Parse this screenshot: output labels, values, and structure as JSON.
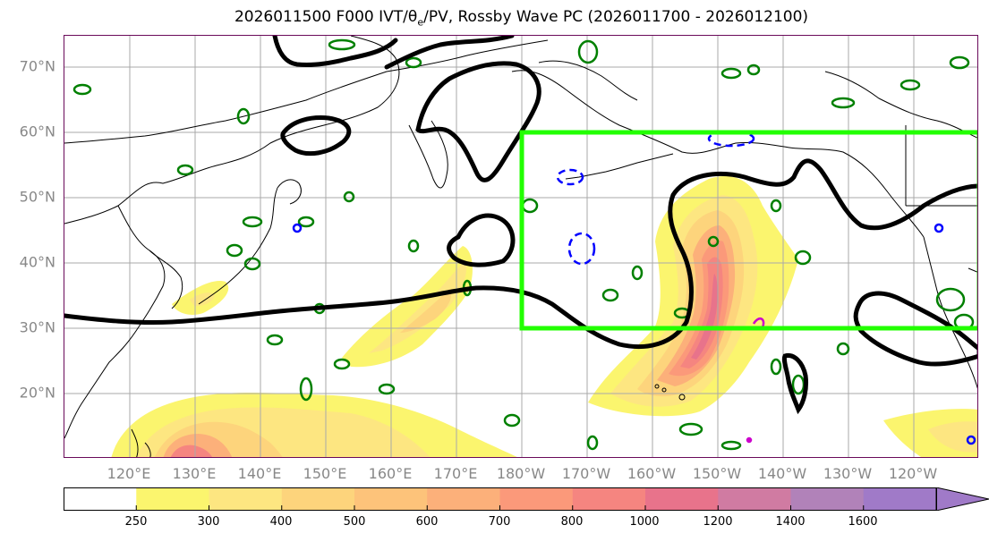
{
  "title": {
    "text": "2026011500 F000 IVT/θ",
    "sub": "e",
    "text2": "/PV, Rossby Wave PC (2026011700 - 2026012100)"
  },
  "map": {
    "lon_range": [
      110,
      250
    ],
    "lat_range": [
      10,
      75
    ],
    "lat_labels": [
      "20°N",
      "30°N",
      "40°N",
      "50°N",
      "60°N",
      "70°N"
    ],
    "lon_labels": [
      "120°E",
      "130°E",
      "140°E",
      "150°E",
      "160°E",
      "170°E",
      "180°W",
      "170°W",
      "160°W",
      "150°W",
      "140°W",
      "130°W",
      "120°W"
    ],
    "grid": true,
    "region_box": {
      "lon": [
        180,
        250
      ],
      "lat": [
        30,
        60
      ],
      "color": "#22ff00"
    },
    "colors": {
      "coast": "#000000",
      "pv_contour": "#000000",
      "theta_pos": "#008000",
      "theta_neg": "#0000ff",
      "theta_strong": "#cc00cc"
    }
  },
  "colorbar": {
    "levels": [
      "250",
      "300",
      "400",
      "500",
      "600",
      "700",
      "800",
      "1000",
      "1200",
      "1400",
      "1600"
    ],
    "colors": [
      "#ffffff",
      "#fbf56e",
      "#fde681",
      "#fdd47c",
      "#fdc37a",
      "#fcb07a",
      "#fb997a",
      "#f58580",
      "#e8738b",
      "#d07ba2",
      "#b182b9",
      "#a07ac8"
    ]
  }
}
